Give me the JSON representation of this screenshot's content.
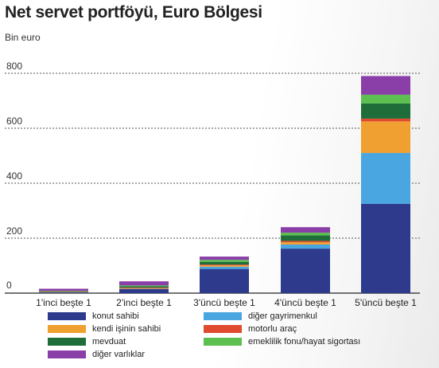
{
  "title": "Net servet portföyü, Euro Bölgesi",
  "unit_label": "Bin euro",
  "chart_data": {
    "type": "bar",
    "stacked": true,
    "title": "Net servet portföyü, Euro Bölgesi",
    "ylabel": "Bin euro",
    "xlabel": "",
    "ylim": [
      0,
      800
    ],
    "yticks": [
      0,
      200,
      400,
      600,
      800
    ],
    "grid": "horizontal dotted",
    "categories": [
      "1'inci beşte 1",
      "2'inci beşte 1",
      "3'üncü beşte 1",
      "4'üncü beşte 1",
      "5'üncü beşte 1"
    ],
    "series": [
      {
        "name": "konut sahibi",
        "color": "#2e3a8c",
        "values": [
          3,
          15,
          88,
          162,
          325
        ]
      },
      {
        "name": "diğer gayrimenkul",
        "color": "#4aa6e0",
        "values": [
          1,
          2,
          8,
          15,
          185
        ]
      },
      {
        "name": "kendi işinin sahibi",
        "color": "#f0a030",
        "values": [
          0,
          1,
          5,
          8,
          115
        ]
      },
      {
        "name": "motorlu araç",
        "color": "#e04a2f",
        "values": [
          1,
          2,
          3,
          5,
          10
        ]
      },
      {
        "name": "mevduat",
        "color": "#1f6e3a",
        "values": [
          2,
          5,
          10,
          20,
          55
        ]
      },
      {
        "name": "emeklilik fonu/hayat sigortası",
        "color": "#5cbf4f",
        "values": [
          1,
          3,
          7,
          10,
          32
        ]
      },
      {
        "name": "diğer varlıklar",
        "color": "#8a3fa8",
        "values": [
          8,
          15,
          12,
          20,
          68
        ]
      }
    ],
    "legend_placement": "bottom"
  }
}
